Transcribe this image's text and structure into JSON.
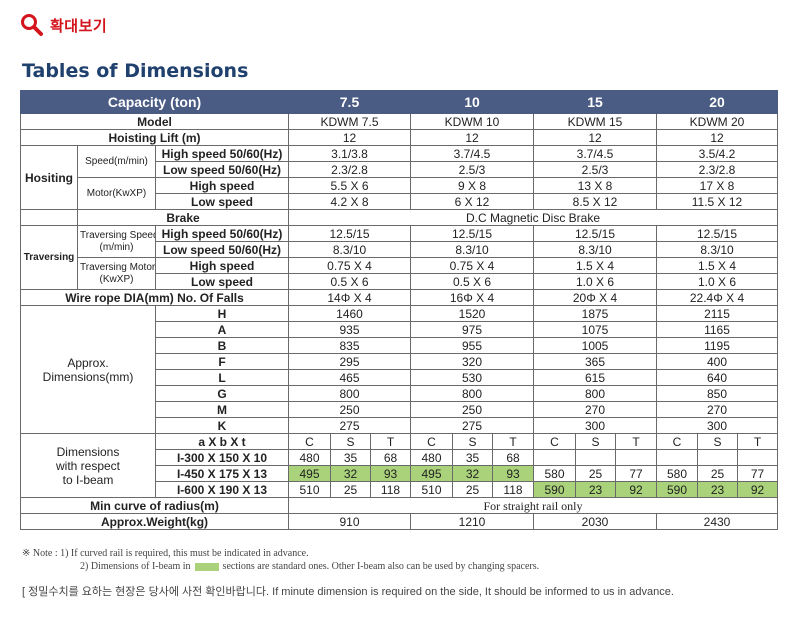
{
  "zoom": {
    "label": "확대보기",
    "icon": "magnifier-icon",
    "color": "#d4141c"
  },
  "title": "Tables of Dimensions",
  "colors": {
    "header_bg": "#4a5b84",
    "highlight": "#a9d27a",
    "title": "#20406e"
  },
  "table": {
    "capacity_label": "Capacity (ton)",
    "capacities": [
      "7.5",
      "10",
      "15",
      "20"
    ],
    "model_label": "Model",
    "models": [
      "KDWM 7.5",
      "KDWM 10",
      "KDWM 15",
      "KDWM 20"
    ],
    "hoisting_lift_label": "Hoisting Lift (m)",
    "hoisting_lift": [
      "12",
      "12",
      "12",
      "12"
    ],
    "hoisting": {
      "group": "Hositing",
      "speed_label": "Speed(m/min)",
      "motor_label": "Motor(KwXP)",
      "rows": [
        {
          "label": "High speed 50/60(Hz)",
          "values": [
            "3.1/3.8",
            "3.7/4.5",
            "3.7/4.5",
            "3.5/4.2"
          ]
        },
        {
          "label": "Low speed 50/60(Hz)",
          "values": [
            "2.3/2.8",
            "2.5/3",
            "2.5/3",
            "2.3/2.8"
          ]
        },
        {
          "label": "High speed",
          "values": [
            "5.5 X 6",
            "9 X 8",
            "13 X 8",
            "17 X 8"
          ]
        },
        {
          "label": "Low speed",
          "values": [
            "4.2 X 8",
            "6 X 12",
            "8.5 X 12",
            "11.5 X 12"
          ]
        }
      ]
    },
    "brake": {
      "label": "Brake",
      "value": "D.C Magnetic Disc Brake"
    },
    "traversing": {
      "group": "Traversing",
      "speed_label_1": "Traversing Speed",
      "speed_label_2": "(m/min)",
      "motor_label_1": "Traversing Motor",
      "motor_label_2": "(KwXP)",
      "rows": [
        {
          "label": "High speed 50/60(Hz)",
          "values": [
            "12.5/15",
            "12.5/15",
            "12.5/15",
            "12.5/15"
          ]
        },
        {
          "label": "Low speed 50/60(Hz)",
          "values": [
            "8.3/10",
            "8.3/10",
            "8.3/10",
            "8.3/10"
          ]
        },
        {
          "label": "High speed",
          "values": [
            "0.75 X 4",
            "0.75 X 4",
            "1.5 X 4",
            "1.5 X 4"
          ]
        },
        {
          "label": "Low speed",
          "values": [
            "0.5 X 6",
            "0.5 X 6",
            "1.0 X 6",
            "1.0 X 6"
          ]
        }
      ]
    },
    "wire_rope": {
      "label": "Wire rope DIA(mm) No. Of Falls",
      "values": [
        "14Φ X 4",
        "16Φ X 4",
        "20Φ X 4",
        "22.4Φ X 4"
      ]
    },
    "approx": {
      "label_1": "Approx.",
      "label_2": "Dimensions(mm)",
      "rows": [
        {
          "label": "H",
          "values": [
            "1460",
            "1520",
            "1875",
            "2115"
          ]
        },
        {
          "label": "A",
          "values": [
            "935",
            "975",
            "1075",
            "1165"
          ]
        },
        {
          "label": "B",
          "values": [
            "835",
            "955",
            "1005",
            "1195"
          ]
        },
        {
          "label": "F",
          "values": [
            "295",
            "320",
            "365",
            "400"
          ]
        },
        {
          "label": "L",
          "values": [
            "465",
            "530",
            "615",
            "640"
          ]
        },
        {
          "label": "G",
          "values": [
            "800",
            "800",
            "800",
            "850"
          ]
        },
        {
          "label": "M",
          "values": [
            "250",
            "250",
            "270",
            "270"
          ]
        },
        {
          "label": "K",
          "values": [
            "275",
            "275",
            "300",
            "300"
          ]
        }
      ]
    },
    "ibeam": {
      "label_1": "Dimensions",
      "label_2": "with respect",
      "label_3": "to I-beam",
      "axbxt": "a X b X t",
      "cst": [
        "C",
        "S",
        "T"
      ],
      "rows": [
        {
          "label": "I-300 X 150 X 10",
          "cells": [
            [
              "480",
              "35",
              "68"
            ],
            [
              "480",
              "35",
              "68"
            ],
            [
              "",
              "",
              ""
            ],
            [
              "",
              "",
              ""
            ]
          ]
        },
        {
          "label": "I-450 X 175 X 13",
          "cells": [
            [
              "495",
              "32",
              "93"
            ],
            [
              "495",
              "32",
              "93"
            ],
            [
              "580",
              "25",
              "77"
            ],
            [
              "580",
              "25",
              "77"
            ]
          ]
        },
        {
          "label": "I-600 X 190 X 13",
          "cells": [
            [
              "510",
              "25",
              "118"
            ],
            [
              "510",
              "25",
              "118"
            ],
            [
              "590",
              "23",
              "92"
            ],
            [
              "590",
              "23",
              "92"
            ]
          ]
        }
      ]
    },
    "min_curve": {
      "label": "Min curve of radius(m)",
      "value": "For straight rail only"
    },
    "weight": {
      "label": "Approx.Weight(kg)",
      "values": [
        "910",
        "1210",
        "2030",
        "2430"
      ]
    }
  },
  "notes": {
    "line1": "※ Note :  1) If curved rail is required, this must be indicated in advance.",
    "line2a": "2) Dimensions of I-beam in",
    "line2b": "sections are standard ones. Other I-beam also can be used by changing spacers."
  },
  "footer": "[ 정밀수치를 요하는 현장은 당사에 사전 확인바랍니다. If minute dimension is required on the side, It should be informed to us in advance."
}
